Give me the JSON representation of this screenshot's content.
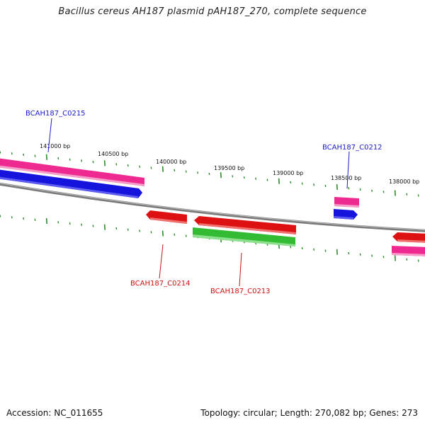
{
  "title": "Bacillus cereus AH187 plasmid pAH187_270, complete sequence",
  "footer": {
    "accession": "Accession: NC_011655",
    "summary": "Topology: circular; Length: 270,082 bp; Genes: 273"
  },
  "tick_labels": [
    "141000 bp",
    "140500 bp",
    "140000 bp",
    "139500 bp",
    "139000 bp",
    "138500 bp",
    "138000 bp"
  ],
  "gene_labels": {
    "c0215": "BCAH187_C0215",
    "c0212": "BCAH187_C0212",
    "c0214": "BCAH187_C0214",
    "c0213": "BCAH187_C0213"
  },
  "colors": {
    "backbone": "#808080",
    "tick_green": "#2e8b2e",
    "pink": "#ee2a90",
    "blue": "#1414dd",
    "red": "#dd1111",
    "green": "#33bb33",
    "label_blue": "#1a1acc",
    "label_red": "#cc1111"
  }
}
